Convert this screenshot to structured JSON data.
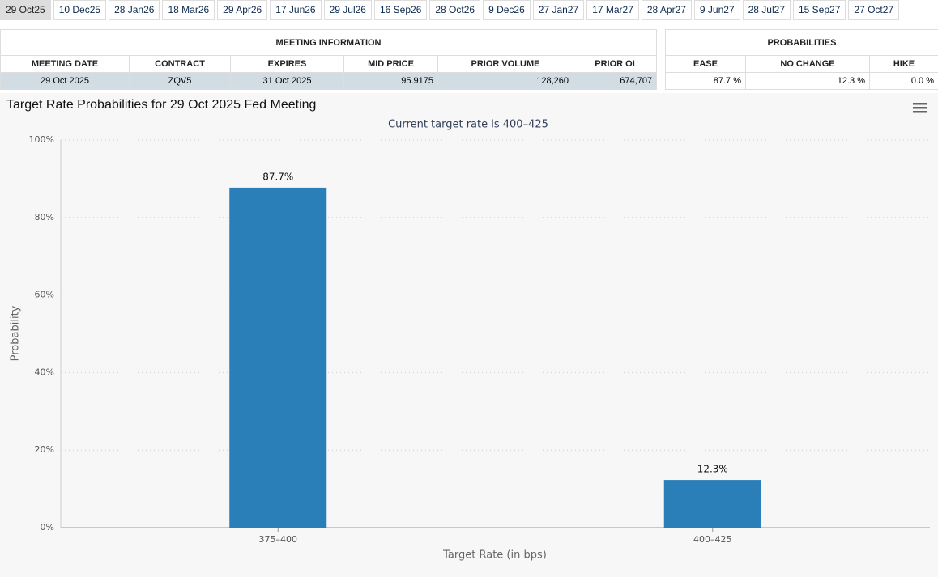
{
  "tabs": [
    "29 Oct25",
    "10 Dec25",
    "28 Jan26",
    "18 Mar26",
    "29 Apr26",
    "17 Jun26",
    "29 Jul26",
    "16 Sep26",
    "28 Oct26",
    "9 Dec26",
    "27 Jan27",
    "17 Mar27",
    "28 Apr27",
    "9 Jun27",
    "28 Jul27",
    "15 Sep27",
    "27 Oct27"
  ],
  "meeting_info": {
    "title": "MEETING INFORMATION",
    "columns": [
      "MEETING DATE",
      "CONTRACT",
      "EXPIRES",
      "MID PRICE",
      "PRIOR VOLUME",
      "PRIOR OI"
    ],
    "rows": [
      [
        "29 Oct 2025",
        "ZQV5",
        "31 Oct 2025",
        "95.9175",
        "128,260",
        "674,707"
      ]
    ]
  },
  "probabilities": {
    "title": "PROBABILITIES",
    "columns": [
      "EASE",
      "NO CHANGE",
      "HIKE"
    ],
    "rows": [
      [
        "87.7 %",
        "12.3 %",
        "0.0 %"
      ]
    ]
  },
  "chart_data": {
    "type": "bar",
    "title": "Target Rate Probabilities for 29 Oct 2025 Fed Meeting",
    "subtitle": "Current target rate is 400–425",
    "x_label": "Target Rate (in bps)",
    "y_label": "Probability",
    "categories": [
      "375–400",
      "400–425"
    ],
    "values": [
      87.7,
      12.3
    ],
    "value_labels": [
      "87.7%",
      "12.3%"
    ],
    "color": "#2b7fb8",
    "ylim": [
      0,
      100
    ],
    "yticks": [
      {
        "value": 0,
        "label": "0%"
      },
      {
        "value": 20,
        "label": "20%"
      },
      {
        "value": 40,
        "label": "40%"
      },
      {
        "value": 60,
        "label": "60%"
      },
      {
        "value": 80,
        "label": "80%"
      },
      {
        "value": 100,
        "label": "100%"
      }
    ],
    "grid": true
  }
}
